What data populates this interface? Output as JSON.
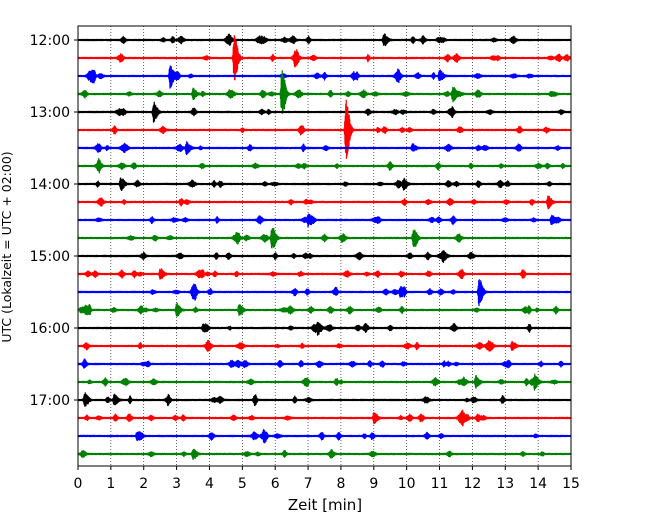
{
  "chart_data": {
    "type": "line",
    "subtype": "helicorder",
    "xlabel": "Zeit  [min]",
    "ylabel": "UTC (Lokalzeit = UTC + 02:00)",
    "xlim": [
      0,
      15
    ],
    "x_ticks": [
      "0",
      "1",
      "2",
      "3",
      "4",
      "5",
      "6",
      "7",
      "8",
      "9",
      "10",
      "11",
      "12",
      "13",
      "14",
      "15"
    ],
    "y_ticks": [
      {
        "label": "12:00",
        "trace": 0
      },
      {
        "label": "13:00",
        "trace": 4
      },
      {
        "label": "14:00",
        "trace": 8
      },
      {
        "label": "15:00",
        "trace": 12
      },
      {
        "label": "16:00",
        "trace": 16
      },
      {
        "label": "17:00",
        "trace": 20
      }
    ],
    "trace_minutes": 15,
    "trace_count": 24,
    "start_time_utc": "12:00",
    "trace_colors": [
      "#000000",
      "#ff0000",
      "#0000ff",
      "#008000"
    ],
    "grid": "vertical dotted",
    "events": [
      {
        "trace": 0,
        "minute": 9.3,
        "amplitude": 0.35
      },
      {
        "trace": 1,
        "minute": 4.75,
        "amplitude": 1.25
      },
      {
        "trace": 1,
        "minute": 6.6,
        "amplitude": 0.35
      },
      {
        "trace": 2,
        "minute": 2.8,
        "amplitude": 0.65
      },
      {
        "trace": 2,
        "minute": 11.0,
        "amplitude": 0.35
      },
      {
        "trace": 3,
        "minute": 3.5,
        "amplitude": 0.3
      },
      {
        "trace": 3,
        "minute": 6.2,
        "amplitude": 1.3
      },
      {
        "trace": 3,
        "minute": 11.4,
        "amplitude": 0.4
      },
      {
        "trace": 4,
        "minute": 2.3,
        "amplitude": 0.55
      },
      {
        "trace": 5,
        "minute": 8.15,
        "amplitude": 1.7
      },
      {
        "trace": 6,
        "minute": 3.3,
        "amplitude": 0.35
      },
      {
        "trace": 8,
        "minute": 1.3,
        "amplitude": 0.35
      },
      {
        "trace": 8,
        "minute": 9.9,
        "amplitude": 0.3
      },
      {
        "trace": 9,
        "minute": 14.3,
        "amplitude": 0.35
      },
      {
        "trace": 10,
        "minute": 7.0,
        "amplitude": 0.3
      },
      {
        "trace": 10,
        "minute": 14.4,
        "amplitude": 0.25
      },
      {
        "trace": 11,
        "minute": 5.9,
        "amplitude": 0.7
      },
      {
        "trace": 11,
        "minute": 10.2,
        "amplitude": 0.45
      },
      {
        "trace": 12,
        "minute": 11.1,
        "amplitude": 0.3
      },
      {
        "trace": 13,
        "minute": 2.5,
        "amplitude": 0.3
      },
      {
        "trace": 14,
        "minute": 12.2,
        "amplitude": 0.75
      },
      {
        "trace": 14,
        "minute": 9.8,
        "amplitude": 0.3
      },
      {
        "trace": 15,
        "minute": 3.0,
        "amplitude": 0.35
      },
      {
        "trace": 15,
        "minute": 4.9,
        "amplitude": 0.3
      },
      {
        "trace": 16,
        "minute": 7.3,
        "amplitude": 0.35
      },
      {
        "trace": 17,
        "minute": 13.2,
        "amplitude": 0.25
      },
      {
        "trace": 19,
        "minute": 12.1,
        "amplitude": 0.35
      },
      {
        "trace": 19,
        "minute": 13.9,
        "amplitude": 0.3
      },
      {
        "trace": 20,
        "minute": 0.2,
        "amplitude": 0.4
      },
      {
        "trace": 20,
        "minute": 1.1,
        "amplitude": 0.3
      },
      {
        "trace": 21,
        "minute": 9.0,
        "amplitude": 0.3
      },
      {
        "trace": 21,
        "minute": 11.7,
        "amplitude": 0.3
      },
      {
        "trace": 22,
        "minute": 1.8,
        "amplitude": 0.3
      },
      {
        "trace": 23,
        "minute": 3.5,
        "amplitude": 0.3
      }
    ]
  }
}
